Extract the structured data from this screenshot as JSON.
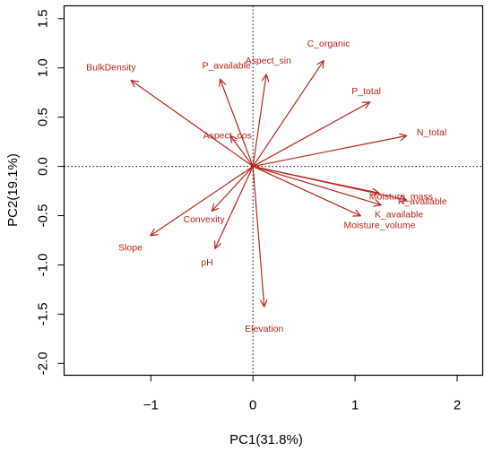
{
  "chart_data": {
    "type": "biplot",
    "xlabel": "PC1(31.8%)",
    "ylabel": "PC2(19.1%)",
    "xlim": [
      -1.85,
      2.25
    ],
    "ylim": [
      -2.12,
      1.63
    ],
    "x_ticks": [
      -1,
      0,
      1,
      2
    ],
    "y_ticks": [
      -2.0,
      -1.5,
      -1.0,
      -0.5,
      0.0,
      0.5,
      1.0,
      1.5
    ],
    "y_tick_labels": [
      "-2.0",
      "-1.5",
      "-1.0",
      "-0.5",
      "0.0",
      "0.5",
      "1.0",
      "1.5"
    ],
    "reference_lines": {
      "x": 0,
      "y": 0,
      "style": "dotted"
    },
    "arrow_color": "#b8251d",
    "vectors": [
      {
        "name": "BulkDensity",
        "x": -1.19,
        "y": 0.87,
        "label_x": -1.39,
        "label_y": 1.01
      },
      {
        "name": "P_available",
        "x": -0.32,
        "y": 0.88,
        "label_x": -0.26,
        "label_y": 1.03
      },
      {
        "name": "Aspect_sin",
        "x": 0.13,
        "y": 0.93,
        "label_x": 0.15,
        "label_y": 1.08
      },
      {
        "name": "C_organic",
        "x": 0.69,
        "y": 1.07,
        "label_x": 0.74,
        "label_y": 1.25
      },
      {
        "name": "P_total",
        "x": 1.14,
        "y": 0.65,
        "label_x": 1.11,
        "label_y": 0.77
      },
      {
        "name": "N_total",
        "x": 1.5,
        "y": 0.31,
        "label_x": 1.75,
        "label_y": 0.35
      },
      {
        "name": "Aspect_cos",
        "x": -0.22,
        "y": 0.31,
        "label_x": -0.25,
        "label_y": 0.32
      },
      {
        "name": "Moisture_mass",
        "x": 1.23,
        "y": -0.27,
        "label_x": 1.45,
        "label_y": -0.3
      },
      {
        "name": "N_available",
        "x": 1.5,
        "y": -0.34,
        "label_x": 1.66,
        "label_y": -0.35
      },
      {
        "name": "K_available",
        "x": 1.25,
        "y": -0.39,
        "label_x": 1.43,
        "label_y": -0.48
      },
      {
        "name": "Moisture_volume",
        "x": 1.05,
        "y": -0.5,
        "label_x": 1.24,
        "label_y": -0.59
      },
      {
        "name": "Convexity",
        "x": -0.4,
        "y": -0.45,
        "label_x": -0.48,
        "label_y": -0.53
      },
      {
        "name": "Slope",
        "x": -1.0,
        "y": -0.7,
        "label_x": -1.2,
        "label_y": -0.82
      },
      {
        "name": "pH",
        "x": -0.37,
        "y": -0.83,
        "label_x": -0.45,
        "label_y": -0.97
      },
      {
        "name": "Elevation",
        "x": 0.11,
        "y": -1.42,
        "label_x": 0.11,
        "label_y": -1.64
      }
    ]
  }
}
